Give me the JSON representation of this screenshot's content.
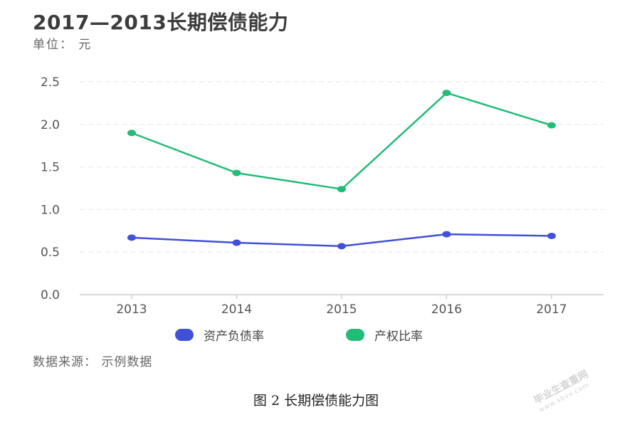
{
  "header": {
    "title": "2017—2013长期偿债能力",
    "unit": "单位： 元"
  },
  "chart_data": {
    "type": "line",
    "categories": [
      "2013",
      "2014",
      "2015",
      "2016",
      "2017"
    ],
    "series": [
      {
        "name": "资产负债率",
        "color": "#4150d8",
        "values": [
          0.67,
          0.61,
          0.57,
          0.71,
          0.69
        ]
      },
      {
        "name": "产权比率",
        "color": "#22bb78",
        "values": [
          1.9,
          1.43,
          1.24,
          2.37,
          1.99
        ]
      }
    ],
    "ylim": [
      0,
      2.5
    ],
    "yticks": [
      "0.0",
      "0.5",
      "1.0",
      "1.5",
      "2.0",
      "2.5"
    ],
    "grid": true,
    "legend_position": "bottom"
  },
  "legend": [
    {
      "label": "资产负债率",
      "color": "#4150d8"
    },
    {
      "label": "产权比率",
      "color": "#22bb78"
    }
  ],
  "source": "数据来源： 示例数据",
  "caption": "图 2  长期偿债能力图",
  "watermark": {
    "line1": "毕业生查重网",
    "line2": "www.sbvv.com"
  }
}
